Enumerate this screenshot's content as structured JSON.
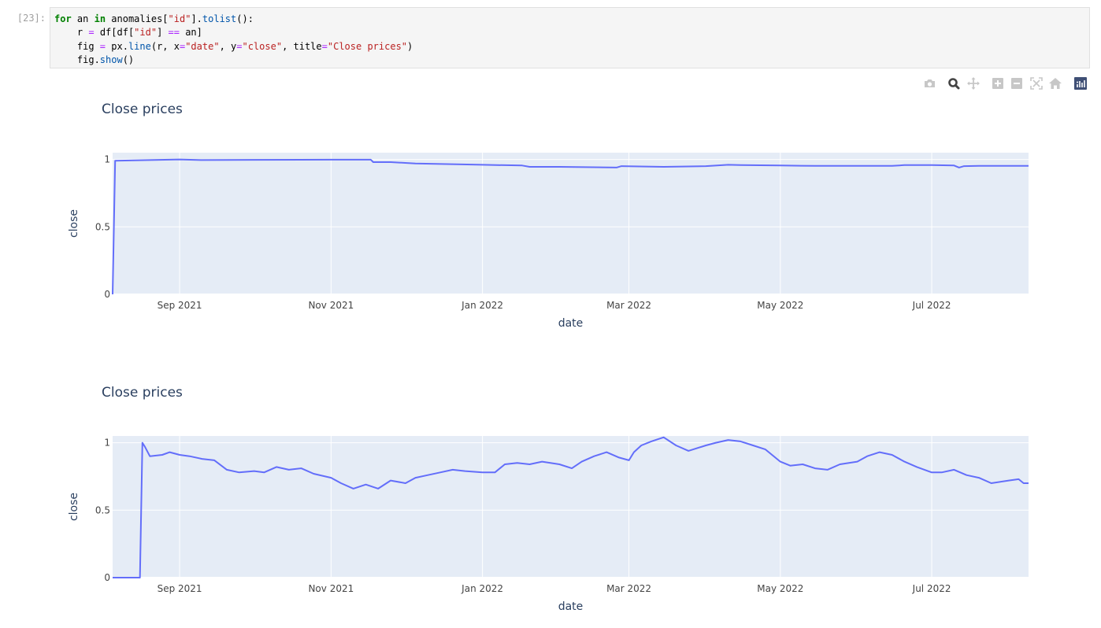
{
  "cell": {
    "prompt": "[23]:",
    "code_lines": [
      [
        {
          "t": "for",
          "c": "kw"
        },
        {
          "t": " an ",
          "c": ""
        },
        {
          "t": "in",
          "c": "kw"
        },
        {
          "t": " anomalies[",
          "c": ""
        },
        {
          "t": "\"id\"",
          "c": "str"
        },
        {
          "t": "].",
          "c": ""
        },
        {
          "t": "tolist",
          "c": "nm"
        },
        {
          "t": "():",
          "c": ""
        }
      ],
      [
        {
          "t": "    r ",
          "c": ""
        },
        {
          "t": "=",
          "c": "op"
        },
        {
          "t": " df[df[",
          "c": ""
        },
        {
          "t": "\"id\"",
          "c": "str"
        },
        {
          "t": "] ",
          "c": ""
        },
        {
          "t": "==",
          "c": "op"
        },
        {
          "t": " an]",
          "c": ""
        }
      ],
      [
        {
          "t": "    fig ",
          "c": ""
        },
        {
          "t": "=",
          "c": "op"
        },
        {
          "t": " px.",
          "c": ""
        },
        {
          "t": "line",
          "c": "nm"
        },
        {
          "t": "(r, x",
          "c": ""
        },
        {
          "t": "=",
          "c": "op"
        },
        {
          "t": "\"date\"",
          "c": "str"
        },
        {
          "t": ", y",
          "c": ""
        },
        {
          "t": "=",
          "c": "op"
        },
        {
          "t": "\"close\"",
          "c": "str"
        },
        {
          "t": ", title",
          "c": ""
        },
        {
          "t": "=",
          "c": "op"
        },
        {
          "t": "\"Close prices\"",
          "c": "str"
        },
        {
          "t": ")",
          "c": ""
        }
      ],
      [
        {
          "t": "    fig.",
          "c": ""
        },
        {
          "t": "show",
          "c": "nm"
        },
        {
          "t": "()",
          "c": ""
        }
      ]
    ]
  },
  "modebar": {
    "buttons": [
      "camera-icon",
      "zoom-icon",
      "pan-icon",
      "zoom-in-icon",
      "zoom-out-icon",
      "autoscale-icon",
      "home-icon",
      "plotly-logo-icon"
    ],
    "active": "zoom-icon"
  },
  "colors": {
    "line": "#636efa",
    "plot_bg": "#e5ecf6",
    "grid": "#ffffff",
    "text": "#2a3f5f",
    "tick_text": "#444444",
    "modebar_icon": "#c7c7c7",
    "modebar_active": "#444444",
    "plotly_logo_bg": "#3f4f75"
  },
  "chart_data": [
    {
      "type": "line",
      "title": "Close prices",
      "xlabel": "date",
      "ylabel": "close",
      "x_ticks": [
        "Sep 2021",
        "Nov 2021",
        "Jan 2022",
        "Mar 2022",
        "May 2022",
        "Jul 2022"
      ],
      "y_ticks": [
        "0",
        "0.5",
        "1"
      ],
      "ylim": [
        0,
        1.05
      ],
      "xlim": [
        "2021-08-05",
        "2022-08-09"
      ],
      "grid": true,
      "x": [
        "2021-08-05",
        "2021-08-06",
        "2021-09-01",
        "2021-09-10",
        "2021-10-01",
        "2021-11-01",
        "2021-11-17",
        "2021-11-18",
        "2021-11-25",
        "2021-12-05",
        "2022-01-01",
        "2022-01-17",
        "2022-01-20",
        "2022-02-01",
        "2022-02-24",
        "2022-02-26",
        "2022-03-15",
        "2022-04-01",
        "2022-04-10",
        "2022-04-15",
        "2022-05-01",
        "2022-05-15",
        "2022-06-01",
        "2022-06-15",
        "2022-06-20",
        "2022-07-01",
        "2022-07-10",
        "2022-07-12",
        "2022-07-14",
        "2022-07-20",
        "2022-08-09"
      ],
      "y": [
        0.0,
        0.99,
        1.0,
        0.995,
        0.997,
        0.998,
        0.998,
        0.98,
        0.98,
        0.97,
        0.96,
        0.955,
        0.945,
        0.945,
        0.94,
        0.95,
        0.945,
        0.95,
        0.96,
        0.958,
        0.955,
        0.952,
        0.952,
        0.952,
        0.958,
        0.958,
        0.955,
        0.94,
        0.95,
        0.952,
        0.952
      ]
    },
    {
      "type": "line",
      "title": "Close prices",
      "xlabel": "date",
      "ylabel": "close",
      "x_ticks": [
        "Sep 2021",
        "Nov 2021",
        "Jan 2022",
        "Mar 2022",
        "May 2022",
        "Jul 2022"
      ],
      "y_ticks": [
        "0",
        "0.5",
        "1"
      ],
      "ylim": [
        0,
        1.05
      ],
      "xlim": [
        "2021-08-05",
        "2022-08-09"
      ],
      "grid": true,
      "x": [
        "2021-08-05",
        "2021-08-16",
        "2021-08-17",
        "2021-08-18",
        "2021-08-20",
        "2021-08-25",
        "2021-08-28",
        "2021-09-01",
        "2021-09-05",
        "2021-09-10",
        "2021-09-15",
        "2021-09-20",
        "2021-09-25",
        "2021-10-01",
        "2021-10-05",
        "2021-10-10",
        "2021-10-15",
        "2021-10-20",
        "2021-10-25",
        "2021-11-01",
        "2021-11-05",
        "2021-11-10",
        "2021-11-15",
        "2021-11-20",
        "2021-11-25",
        "2021-12-01",
        "2021-12-05",
        "2021-12-10",
        "2021-12-15",
        "2021-12-20",
        "2021-12-25",
        "2022-01-01",
        "2022-01-06",
        "2022-01-10",
        "2022-01-15",
        "2022-01-20",
        "2022-01-25",
        "2022-02-01",
        "2022-02-06",
        "2022-02-10",
        "2022-02-15",
        "2022-02-20",
        "2022-02-25",
        "2022-03-01",
        "2022-03-03",
        "2022-03-06",
        "2022-03-10",
        "2022-03-15",
        "2022-03-20",
        "2022-03-25",
        "2022-04-01",
        "2022-04-05",
        "2022-04-10",
        "2022-04-15",
        "2022-04-20",
        "2022-04-25",
        "2022-05-01",
        "2022-05-05",
        "2022-05-10",
        "2022-05-15",
        "2022-05-20",
        "2022-05-25",
        "2022-06-01",
        "2022-06-05",
        "2022-06-10",
        "2022-06-15",
        "2022-06-20",
        "2022-06-25",
        "2022-07-01",
        "2022-07-05",
        "2022-07-10",
        "2022-07-15",
        "2022-07-20",
        "2022-07-25",
        "2022-08-01",
        "2022-08-05",
        "2022-08-07",
        "2022-08-09"
      ],
      "y": [
        0.0,
        0.0,
        1.0,
        0.97,
        0.9,
        0.91,
        0.93,
        0.91,
        0.9,
        0.88,
        0.87,
        0.8,
        0.78,
        0.79,
        0.78,
        0.82,
        0.8,
        0.81,
        0.77,
        0.74,
        0.7,
        0.66,
        0.69,
        0.66,
        0.72,
        0.7,
        0.74,
        0.76,
        0.78,
        0.8,
        0.79,
        0.78,
        0.78,
        0.84,
        0.85,
        0.84,
        0.86,
        0.84,
        0.81,
        0.86,
        0.9,
        0.93,
        0.89,
        0.87,
        0.93,
        0.98,
        1.01,
        1.04,
        0.98,
        0.94,
        0.98,
        1.0,
        1.02,
        1.01,
        0.98,
        0.95,
        0.86,
        0.83,
        0.84,
        0.81,
        0.8,
        0.84,
        0.86,
        0.9,
        0.93,
        0.91,
        0.86,
        0.82,
        0.78,
        0.78,
        0.8,
        0.76,
        0.74,
        0.7,
        0.72,
        0.73,
        0.7,
        0.7
      ]
    }
  ]
}
